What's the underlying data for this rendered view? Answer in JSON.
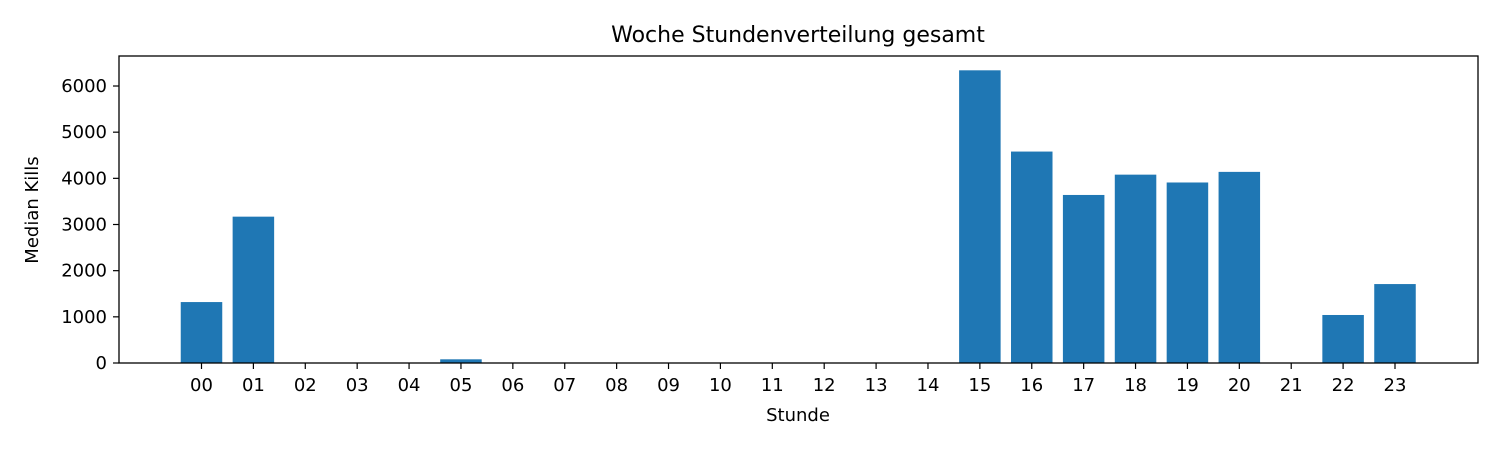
{
  "chart_data": {
    "type": "bar",
    "title": "Woche Stundenverteilung gesamt",
    "xlabel": "Stunde",
    "ylabel": "Median Kills",
    "categories": [
      "00",
      "01",
      "02",
      "03",
      "04",
      "05",
      "06",
      "07",
      "08",
      "09",
      "10",
      "11",
      "12",
      "13",
      "14",
      "15",
      "16",
      "17",
      "18",
      "19",
      "20",
      "21",
      "22",
      "23"
    ],
    "values": [
      1320,
      3170,
      0,
      0,
      0,
      80,
      0,
      0,
      0,
      0,
      0,
      0,
      0,
      0,
      0,
      6340,
      4580,
      3640,
      4080,
      3910,
      4140,
      0,
      1040,
      1710
    ],
    "ylim": [
      0,
      6650
    ],
    "yticks": [
      0,
      1000,
      2000,
      3000,
      4000,
      5000,
      6000
    ],
    "bar_color": "#1f77b4",
    "grid": false,
    "legend": false
  }
}
